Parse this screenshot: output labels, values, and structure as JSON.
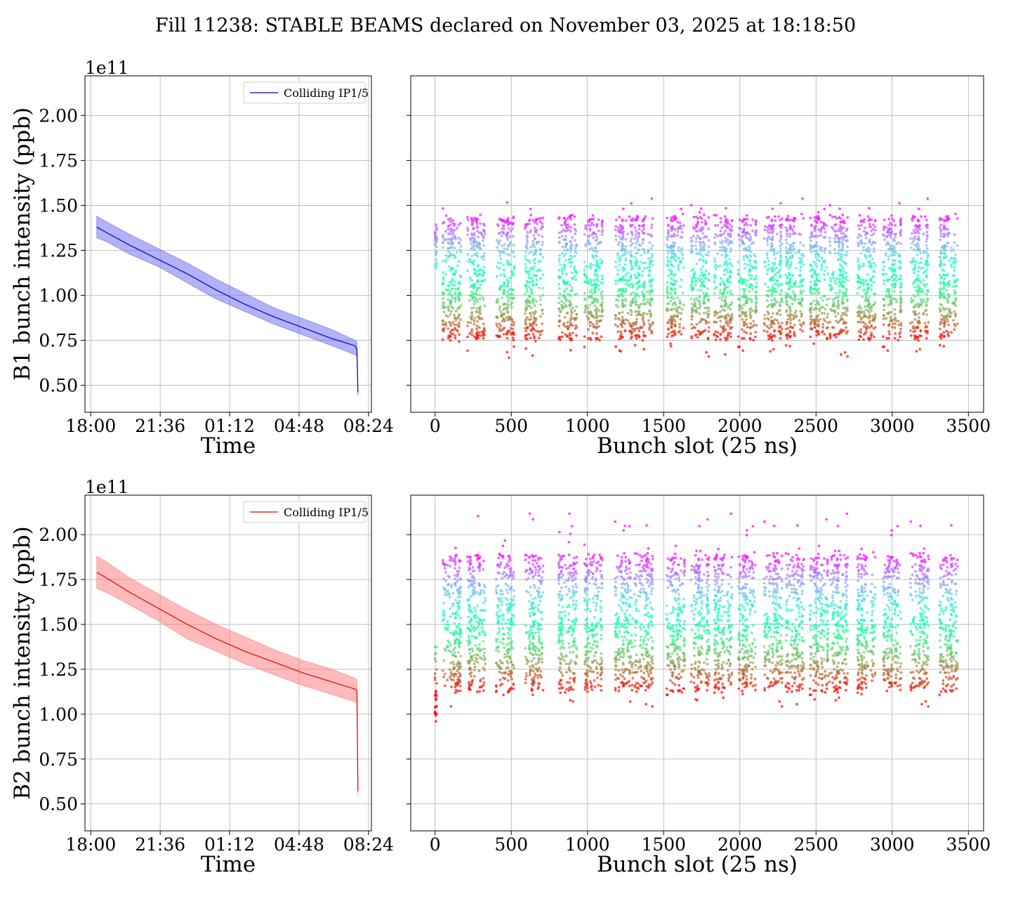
{
  "title": "Fill 11238: STABLE BEAMS declared on November 03, 2025 at 18:18:50",
  "chart_data": [
    {
      "id": "b1-time",
      "type": "line",
      "xlabel": "Time",
      "ylabel": "B1 bunch intensity (ppb)",
      "y_offset_label": "1e11",
      "x_ticks": [
        "18:00",
        "21:36",
        "01:12",
        "04:48",
        "08:24"
      ],
      "x_tick_hours": [
        0,
        3.6,
        7.2,
        10.8,
        14.4
      ],
      "xlim_hours": [
        -0.3,
        14.55
      ],
      "y_ticks": [
        "0.50",
        "0.75",
        "1.00",
        "1.25",
        "1.50",
        "1.75",
        "2.00"
      ],
      "ylim": [
        0.35,
        2.22
      ],
      "legend": "Colliding IP1/5",
      "color": "#0000cc",
      "band_color": "#6666ee",
      "grid": true,
      "series": [
        {
          "name": "Colliding IP1/5",
          "x_hours": [
            0.31,
            0.8,
            2.0,
            3.5,
            5.0,
            6.5,
            8.0,
            9.5,
            11.0,
            12.5,
            13.7,
            13.8,
            13.85
          ],
          "mean": [
            1.38,
            1.35,
            1.28,
            1.2,
            1.12,
            1.03,
            0.95,
            0.88,
            0.82,
            0.76,
            0.72,
            0.7,
            0.46
          ],
          "lower": [
            1.32,
            1.3,
            1.23,
            1.16,
            1.07,
            0.98,
            0.91,
            0.84,
            0.78,
            0.72,
            0.67,
            0.66,
            0.44
          ],
          "upper": [
            1.44,
            1.41,
            1.34,
            1.26,
            1.18,
            1.09,
            1.01,
            0.93,
            0.87,
            0.81,
            0.75,
            0.74,
            0.48
          ]
        }
      ]
    },
    {
      "id": "b1-slot",
      "type": "scatter",
      "xlabel": "Bunch slot (25 ns)",
      "x_ticks": [
        "0",
        "500",
        "1000",
        "1500",
        "2000",
        "2500",
        "3000",
        "3500"
      ],
      "x_tick_values": [
        0,
        500,
        1000,
        1500,
        2000,
        2500,
        3000,
        3500
      ],
      "xlim": [
        -160,
        3600
      ],
      "ylim": [
        0.35,
        2.22
      ],
      "grid": true,
      "colormap": "rainbow",
      "slot_range": [
        0,
        3420
      ],
      "train_starts": [
        50,
        210,
        400,
        590,
        810,
        980,
        1180,
        1310,
        1520,
        1680,
        1830,
        1990,
        2160,
        2300,
        2460,
        2590,
        2770,
        2940,
        3120,
        3310
      ],
      "train_length": 120,
      "pilot_slots": [
        0,
        5,
        10
      ],
      "intensity_core": [
        0.75,
        1.45
      ],
      "intensity_tails": [
        0.65,
        1.54
      ],
      "pilot_range": [
        1.12,
        1.4
      ]
    },
    {
      "id": "b2-time",
      "type": "line",
      "xlabel": "Time",
      "ylabel": "B2 bunch intensity (ppb)",
      "y_offset_label": "1e11",
      "x_ticks": [
        "18:00",
        "21:36",
        "01:12",
        "04:48",
        "08:24"
      ],
      "x_tick_hours": [
        0,
        3.6,
        7.2,
        10.8,
        14.4
      ],
      "xlim_hours": [
        -0.3,
        14.55
      ],
      "y_ticks": [
        "0.50",
        "0.75",
        "1.00",
        "1.25",
        "1.50",
        "1.75",
        "2.00"
      ],
      "ylim": [
        0.35,
        2.22
      ],
      "legend": "Colliding IP1/5",
      "color": "#dd0000",
      "band_color": "#ff7777",
      "grid": true,
      "series": [
        {
          "name": "Colliding IP1/5",
          "x_hours": [
            0.31,
            0.8,
            2.0,
            3.5,
            5.0,
            6.5,
            8.0,
            9.5,
            11.0,
            12.5,
            13.7,
            13.8,
            13.85
          ],
          "mean": [
            1.79,
            1.76,
            1.68,
            1.59,
            1.5,
            1.42,
            1.35,
            1.29,
            1.23,
            1.18,
            1.14,
            1.13,
            0.57
          ],
          "lower": [
            1.7,
            1.68,
            1.61,
            1.52,
            1.42,
            1.35,
            1.28,
            1.22,
            1.16,
            1.11,
            1.07,
            1.06,
            0.55
          ],
          "upper": [
            1.88,
            1.85,
            1.76,
            1.67,
            1.58,
            1.5,
            1.43,
            1.36,
            1.3,
            1.25,
            1.2,
            1.19,
            0.6
          ]
        }
      ]
    },
    {
      "id": "b2-slot",
      "type": "scatter",
      "xlabel": "Bunch slot (25 ns)",
      "x_ticks": [
        "0",
        "500",
        "1000",
        "1500",
        "2000",
        "2500",
        "3000",
        "3500"
      ],
      "x_tick_values": [
        0,
        500,
        1000,
        1500,
        2000,
        2500,
        3000,
        3500
      ],
      "xlim": [
        -160,
        3600
      ],
      "ylim": [
        0.35,
        2.22
      ],
      "grid": true,
      "colormap": "rainbow",
      "slot_range": [
        0,
        3420
      ],
      "train_starts": [
        50,
        210,
        400,
        590,
        810,
        980,
        1180,
        1310,
        1520,
        1680,
        1830,
        1990,
        2160,
        2300,
        2460,
        2590,
        2770,
        2940,
        3120,
        3310
      ],
      "train_length": 120,
      "pilot_slots": [
        0,
        5,
        10
      ],
      "intensity_core": [
        1.12,
        1.9
      ],
      "intensity_tails": [
        1.03,
        2.12
      ],
      "pilot_range": [
        0.96,
        1.38
      ]
    }
  ]
}
